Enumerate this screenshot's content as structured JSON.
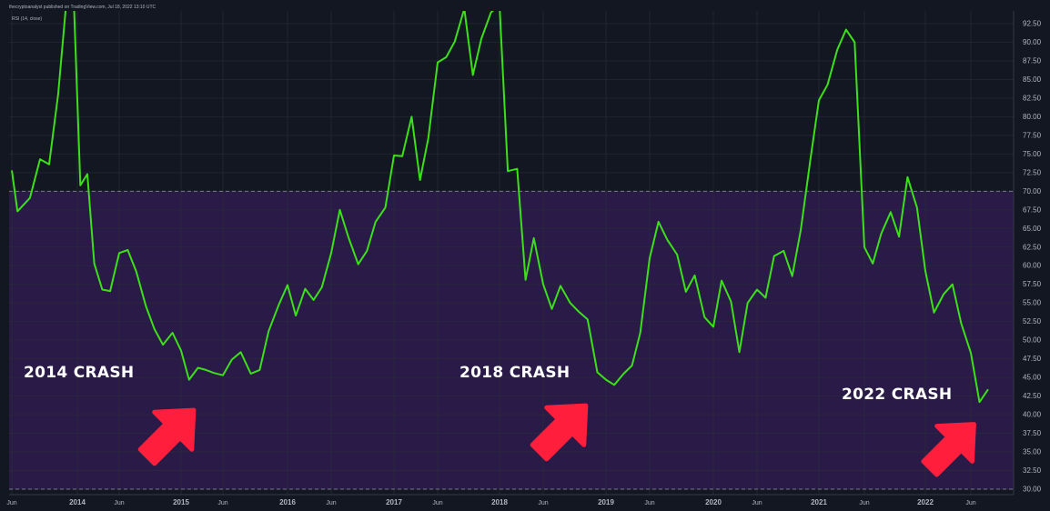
{
  "header": {
    "publisher_line": "thecryptoanalyst published on TradingView.com, Jul 18, 2022 13:10 UTC",
    "indicator_label": "RSI (14, close)"
  },
  "annotations": {
    "crash_2014": "2014 CRASH",
    "crash_2018": "2018 CRASH",
    "crash_2022": "2022 CRASH"
  },
  "colors": {
    "background": "#131722",
    "band_fill": "#2a1a47",
    "rsi_line": "#3ce019",
    "arrow": "#ff1f3d",
    "band_line": "#787b86",
    "grid": "#2a2e39",
    "axis_text": "#b2b5be"
  },
  "icons": [
    "up-right-arrow-icon",
    "up-right-arrow-icon",
    "up-right-arrow-icon"
  ],
  "chart_data": {
    "type": "line",
    "title": "",
    "xlabel": "",
    "ylabel": "",
    "ylim": [
      29.6,
      94
    ],
    "grid": true,
    "bands": {
      "upper": 70,
      "lower": 30
    },
    "x_ticks": [
      "Jun",
      "2014",
      "Jun",
      "2015",
      "Jun",
      "2016",
      "Jun",
      "2017",
      "Jun",
      "2018",
      "Jun",
      "2019",
      "Jun",
      "2020",
      "Jun",
      "2021",
      "Jun",
      "2022",
      "Jun"
    ],
    "y_ticks": [
      "92.50",
      "90.00",
      "87.50",
      "85.00",
      "82.50",
      "80.00",
      "77.50",
      "75.00",
      "72.50",
      "70.00",
      "67.50",
      "65.00",
      "62.50",
      "60.00",
      "57.50",
      "55.00",
      "52.50",
      "50.00",
      "47.50",
      "45.00",
      "42.50",
      "40.00",
      "37.50",
      "35.00",
      "32.50",
      "30.00"
    ],
    "series": [
      {
        "values": [
          [
            2013.42,
            72.8
          ],
          [
            2013.47,
            67.3
          ],
          [
            2013.58,
            69.1
          ],
          [
            2013.67,
            74.3
          ],
          [
            2013.75,
            73.6
          ],
          [
            2013.83,
            83
          ],
          [
            2013.9,
            95
          ],
          [
            2013.97,
            95
          ],
          [
            2014.03,
            70.8
          ],
          [
            2014.1,
            72.3
          ],
          [
            2014.17,
            60.3
          ],
          [
            2014.25,
            56.8
          ],
          [
            2014.33,
            56.6
          ],
          [
            2014.42,
            61.7
          ],
          [
            2014.5,
            62.1
          ],
          [
            2014.58,
            59.2
          ],
          [
            2014.67,
            54.6
          ],
          [
            2014.75,
            51.5
          ],
          [
            2014.83,
            49.4
          ],
          [
            2014.92,
            51
          ],
          [
            2015.0,
            48.6
          ],
          [
            2015.08,
            44.7
          ],
          [
            2015.17,
            46.3
          ],
          [
            2015.25,
            46
          ],
          [
            2015.33,
            45.6
          ],
          [
            2015.42,
            45.3
          ],
          [
            2015.5,
            47.4
          ],
          [
            2015.58,
            48.4
          ],
          [
            2015.67,
            45.5
          ],
          [
            2015.75,
            46
          ],
          [
            2015.83,
            51.2
          ],
          [
            2015.92,
            54.7
          ],
          [
            2016.0,
            57.4
          ],
          [
            2016.08,
            53.3
          ],
          [
            2016.17,
            56.9
          ],
          [
            2016.25,
            55.4
          ],
          [
            2016.33,
            57.1
          ],
          [
            2016.42,
            61.7
          ],
          [
            2016.5,
            67.5
          ],
          [
            2016.58,
            63.8
          ],
          [
            2016.67,
            60.2
          ],
          [
            2016.75,
            62
          ],
          [
            2016.83,
            65.9
          ],
          [
            2016.92,
            67.8
          ],
          [
            2017.0,
            74.8
          ],
          [
            2017.08,
            74.7
          ],
          [
            2017.17,
            80
          ],
          [
            2017.25,
            71.5
          ],
          [
            2017.33,
            77.1
          ],
          [
            2017.42,
            87.3
          ],
          [
            2017.5,
            88
          ],
          [
            2017.58,
            90.1
          ],
          [
            2017.67,
            94.5
          ],
          [
            2017.75,
            85.6
          ],
          [
            2017.83,
            90.5
          ],
          [
            2017.92,
            94
          ],
          [
            2018.0,
            95
          ],
          [
            2018.08,
            72.7
          ],
          [
            2018.17,
            73
          ],
          [
            2018.25,
            58.1
          ],
          [
            2018.33,
            63.7
          ],
          [
            2018.42,
            57.5
          ],
          [
            2018.5,
            54.2
          ],
          [
            2018.58,
            57.3
          ],
          [
            2018.67,
            55
          ],
          [
            2018.75,
            53.8
          ],
          [
            2018.83,
            52.8
          ],
          [
            2018.92,
            45.7
          ],
          [
            2019.0,
            44.7
          ],
          [
            2019.08,
            44
          ],
          [
            2019.17,
            45.5
          ],
          [
            2019.25,
            46.6
          ],
          [
            2019.33,
            51
          ],
          [
            2019.42,
            61
          ],
          [
            2019.5,
            65.9
          ],
          [
            2019.58,
            63.5
          ],
          [
            2019.67,
            61.5
          ],
          [
            2019.75,
            56.5
          ],
          [
            2019.83,
            58.7
          ],
          [
            2019.92,
            53.1
          ],
          [
            2020.0,
            51.8
          ],
          [
            2020.08,
            58
          ],
          [
            2020.17,
            55.2
          ],
          [
            2020.25,
            48.4
          ],
          [
            2020.33,
            55
          ],
          [
            2020.42,
            56.8
          ],
          [
            2020.5,
            55.7
          ],
          [
            2020.58,
            61.3
          ],
          [
            2020.67,
            62
          ],
          [
            2020.75,
            58.6
          ],
          [
            2020.83,
            64.8
          ],
          [
            2020.92,
            74.2
          ],
          [
            2021.0,
            82.2
          ],
          [
            2021.08,
            84.3
          ],
          [
            2021.17,
            89
          ],
          [
            2021.25,
            91.7
          ],
          [
            2021.33,
            90
          ],
          [
            2021.42,
            62.5
          ],
          [
            2021.5,
            60.3
          ],
          [
            2021.58,
            64.3
          ],
          [
            2021.67,
            67.2
          ],
          [
            2021.75,
            63.9
          ],
          [
            2021.83,
            71.9
          ],
          [
            2021.92,
            67.8
          ],
          [
            2022.0,
            59.3
          ],
          [
            2022.08,
            53.7
          ],
          [
            2022.17,
            56.2
          ],
          [
            2022.25,
            57.5
          ],
          [
            2022.33,
            52.3
          ],
          [
            2022.42,
            48.3
          ],
          [
            2022.5,
            41.7
          ],
          [
            2022.58,
            43.4
          ]
        ]
      }
    ]
  }
}
